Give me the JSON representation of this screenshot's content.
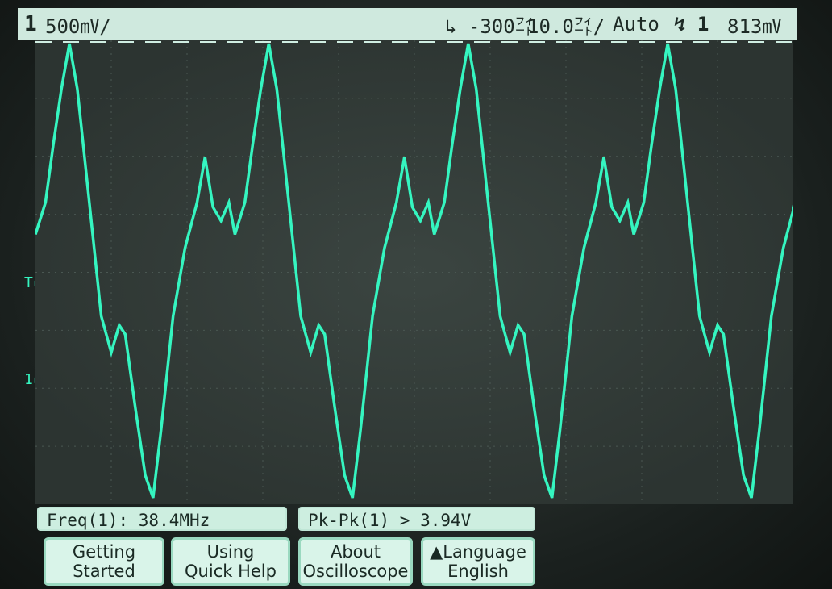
{
  "status": {
    "channel": "1",
    "volts_per_div": "500㎷/",
    "trigger_position": "↳ -300㌳",
    "time_per_div": "10.0㌳/",
    "trigger_mode": "Auto",
    "trigger_source": "↯ 1",
    "trigger_level": "813㎷"
  },
  "markers": {
    "trigger_level": "T▸",
    "ground": "1▸"
  },
  "waveform": {
    "color": "#35f5c0",
    "cycles_on_screen": 3.8,
    "shape": "distorted-triangle"
  },
  "measurements": {
    "freq": "Freq(1): 38.4MHz",
    "pk_pk": "Pk-Pk(1) > 3.94V"
  },
  "softkeys": [
    {
      "line1": "Getting",
      "line2": "Started"
    },
    {
      "line1": "Using",
      "line2": "Quick Help"
    },
    {
      "line1": "About",
      "line2": "Oscilloscope"
    },
    {
      "line1": "▲Language",
      "line2": "English"
    }
  ]
}
